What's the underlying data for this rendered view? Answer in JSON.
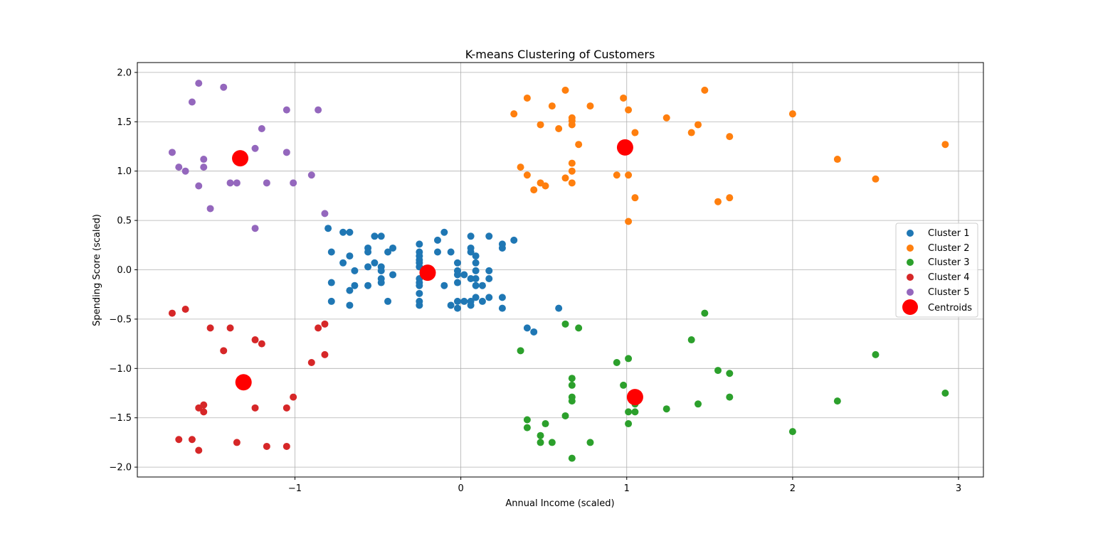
{
  "chart_data": {
    "type": "scatter",
    "title": "K-means Clustering of Customers",
    "xlabel": "Annual Income (scaled)",
    "ylabel": "Spending Score (scaled)",
    "xlim": [
      -1.95,
      3.15
    ],
    "ylim": [
      -2.1,
      2.1
    ],
    "x_ticks": [
      -1,
      0,
      1,
      2,
      3
    ],
    "x_tick_labels": [
      "−1",
      "0",
      "1",
      "2",
      "3"
    ],
    "y_ticks": [
      -2.0,
      -1.5,
      -1.0,
      -0.5,
      0.0,
      0.5,
      1.0,
      1.5,
      2.0
    ],
    "y_tick_labels": [
      "−2.0",
      "−1.5",
      "−1.0",
      "−0.5",
      "0.0",
      "0.5",
      "1.0",
      "1.5",
      "2.0"
    ],
    "grid": true,
    "legend_position": "center-right",
    "series": [
      {
        "name": "Cluster 1",
        "color": "#1f77b4",
        "points": [
          [
            -0.8,
            0.42
          ],
          [
            -0.78,
            0.18
          ],
          [
            -0.78,
            -0.13
          ],
          [
            -0.78,
            -0.32
          ],
          [
            -0.71,
            0.38
          ],
          [
            -0.71,
            0.07
          ],
          [
            -0.67,
            0.38
          ],
          [
            -0.67,
            0.14
          ],
          [
            -0.67,
            -0.21
          ],
          [
            -0.67,
            -0.36
          ],
          [
            -0.64,
            -0.01
          ],
          [
            -0.64,
            -0.16
          ],
          [
            -0.56,
            0.22
          ],
          [
            -0.56,
            0.18
          ],
          [
            -0.56,
            0.03
          ],
          [
            -0.56,
            -0.16
          ],
          [
            -0.52,
            0.34
          ],
          [
            -0.52,
            0.07
          ],
          [
            -0.48,
            0.34
          ],
          [
            -0.48,
            0.03
          ],
          [
            -0.48,
            -0.01
          ],
          [
            -0.48,
            -0.09
          ],
          [
            -0.48,
            -0.13
          ],
          [
            -0.44,
            0.18
          ],
          [
            -0.44,
            -0.32
          ],
          [
            -0.41,
            0.22
          ],
          [
            -0.41,
            -0.05
          ],
          [
            -0.25,
            0.26
          ],
          [
            -0.25,
            0.18
          ],
          [
            -0.25,
            0.14
          ],
          [
            -0.25,
            0.1
          ],
          [
            -0.25,
            0.07
          ],
          [
            -0.25,
            0.03
          ],
          [
            -0.25,
            -0.09
          ],
          [
            -0.25,
            -0.13
          ],
          [
            -0.25,
            -0.16
          ],
          [
            -0.25,
            -0.24
          ],
          [
            -0.25,
            -0.32
          ],
          [
            -0.25,
            -0.36
          ],
          [
            -0.14,
            0.3
          ],
          [
            -0.14,
            0.18
          ],
          [
            -0.1,
            0.38
          ],
          [
            -0.1,
            -0.16
          ],
          [
            -0.06,
            0.18
          ],
          [
            -0.06,
            -0.36
          ],
          [
            -0.02,
            0.07
          ],
          [
            -0.02,
            -0.01
          ],
          [
            -0.02,
            -0.05
          ],
          [
            -0.02,
            -0.13
          ],
          [
            -0.02,
            -0.32
          ],
          [
            -0.02,
            -0.39
          ],
          [
            0.02,
            -0.05
          ],
          [
            0.02,
            -0.32
          ],
          [
            0.06,
            0.34
          ],
          [
            0.06,
            0.22
          ],
          [
            0.06,
            0.18
          ],
          [
            0.06,
            -0.09
          ],
          [
            0.06,
            -0.32
          ],
          [
            0.06,
            -0.36
          ],
          [
            0.09,
            0.14
          ],
          [
            0.09,
            0.07
          ],
          [
            0.09,
            -0.01
          ],
          [
            0.09,
            -0.09
          ],
          [
            0.09,
            -0.16
          ],
          [
            0.09,
            -0.28
          ],
          [
            0.13,
            -0.16
          ],
          [
            0.13,
            -0.32
          ],
          [
            0.17,
            0.34
          ],
          [
            0.17,
            -0.01
          ],
          [
            0.17,
            -0.09
          ],
          [
            0.17,
            -0.28
          ],
          [
            0.25,
            0.26
          ],
          [
            0.25,
            0.22
          ],
          [
            0.25,
            -0.28
          ],
          [
            0.25,
            -0.39
          ],
          [
            0.32,
            0.3
          ],
          [
            0.59,
            -0.39
          ],
          [
            0.4,
            -0.59
          ],
          [
            0.44,
            -0.63
          ]
        ]
      },
      {
        "name": "Cluster 2",
        "color": "#ff7f0e",
        "points": [
          [
            0.32,
            1.58
          ],
          [
            0.36,
            1.04
          ],
          [
            0.4,
            1.74
          ],
          [
            0.4,
            0.96
          ],
          [
            0.44,
            0.81
          ],
          [
            0.48,
            1.47
          ],
          [
            0.48,
            0.88
          ],
          [
            0.51,
            0.85
          ],
          [
            0.55,
            1.66
          ],
          [
            0.59,
            1.43
          ],
          [
            0.63,
            1.82
          ],
          [
            0.63,
            0.93
          ],
          [
            0.67,
            1.54
          ],
          [
            0.67,
            1.51
          ],
          [
            0.67,
            1.47
          ],
          [
            0.67,
            1.08
          ],
          [
            0.67,
            1.0
          ],
          [
            0.67,
            0.88
          ],
          [
            0.71,
            1.27
          ],
          [
            0.78,
            1.66
          ],
          [
            0.94,
            0.96
          ],
          [
            0.98,
            1.74
          ],
          [
            1.01,
            1.62
          ],
          [
            1.01,
            0.96
          ],
          [
            1.01,
            0.49
          ],
          [
            1.05,
            1.39
          ],
          [
            1.05,
            0.73
          ],
          [
            1.24,
            1.54
          ],
          [
            1.39,
            1.39
          ],
          [
            1.43,
            1.47
          ],
          [
            1.47,
            1.82
          ],
          [
            1.55,
            0.69
          ],
          [
            1.62,
            1.35
          ],
          [
            1.62,
            0.73
          ],
          [
            2.0,
            1.58
          ],
          [
            2.27,
            1.12
          ],
          [
            2.5,
            0.92
          ],
          [
            2.92,
            1.27
          ]
        ]
      },
      {
        "name": "Cluster 3",
        "color": "#2ca02c",
        "points": [
          [
            0.36,
            -0.82
          ],
          [
            0.4,
            -1.52
          ],
          [
            0.4,
            -1.6
          ],
          [
            0.48,
            -1.68
          ],
          [
            0.48,
            -1.75
          ],
          [
            0.51,
            -1.56
          ],
          [
            0.55,
            -1.75
          ],
          [
            0.63,
            -0.55
          ],
          [
            0.63,
            -1.48
          ],
          [
            0.67,
            -1.1
          ],
          [
            0.67,
            -1.17
          ],
          [
            0.67,
            -1.29
          ],
          [
            0.67,
            -1.33
          ],
          [
            0.67,
            -1.91
          ],
          [
            0.71,
            -0.59
          ],
          [
            0.78,
            -1.75
          ],
          [
            0.94,
            -0.94
          ],
          [
            0.98,
            -1.17
          ],
          [
            1.01,
            -0.9
          ],
          [
            1.01,
            -1.44
          ],
          [
            1.01,
            -1.56
          ],
          [
            1.05,
            -1.36
          ],
          [
            1.05,
            -1.44
          ],
          [
            1.24,
            -1.41
          ],
          [
            1.39,
            -0.71
          ],
          [
            1.43,
            -1.36
          ],
          [
            1.47,
            -0.44
          ],
          [
            1.55,
            -1.02
          ],
          [
            1.62,
            -1.05
          ],
          [
            1.62,
            -1.29
          ],
          [
            2.0,
            -1.64
          ],
          [
            2.27,
            -1.33
          ],
          [
            2.5,
            -0.86
          ],
          [
            2.92,
            -1.25
          ]
        ]
      },
      {
        "name": "Cluster 4",
        "color": "#d62728",
        "points": [
          [
            -1.74,
            -0.44
          ],
          [
            -1.7,
            -1.72
          ],
          [
            -1.66,
            -0.4
          ],
          [
            -1.62,
            -1.72
          ],
          [
            -1.58,
            -1.4
          ],
          [
            -1.58,
            -1.83
          ],
          [
            -1.55,
            -1.37
          ],
          [
            -1.55,
            -1.44
          ],
          [
            -1.51,
            -0.59
          ],
          [
            -1.43,
            -0.82
          ],
          [
            -1.39,
            -0.59
          ],
          [
            -1.35,
            -1.75
          ],
          [
            -1.24,
            -0.71
          ],
          [
            -1.24,
            -1.4
          ],
          [
            -1.2,
            -0.75
          ],
          [
            -1.17,
            -1.79
          ],
          [
            -1.05,
            -1.4
          ],
          [
            -1.05,
            -1.79
          ],
          [
            -1.01,
            -1.29
          ],
          [
            -0.9,
            -0.94
          ],
          [
            -0.86,
            -0.59
          ],
          [
            -0.82,
            -0.55
          ],
          [
            -0.82,
            -0.86
          ]
        ]
      },
      {
        "name": "Cluster 5",
        "color": "#9467bd",
        "points": [
          [
            -1.74,
            1.19
          ],
          [
            -1.7,
            1.04
          ],
          [
            -1.66,
            1.0
          ],
          [
            -1.62,
            1.7
          ],
          [
            -1.58,
            1.89
          ],
          [
            -1.58,
            0.85
          ],
          [
            -1.55,
            1.12
          ],
          [
            -1.55,
            1.04
          ],
          [
            -1.51,
            0.62
          ],
          [
            -1.43,
            1.85
          ],
          [
            -1.39,
            0.88
          ],
          [
            -1.35,
            0.88
          ],
          [
            -1.24,
            1.23
          ],
          [
            -1.24,
            0.42
          ],
          [
            -1.2,
            1.43
          ],
          [
            -1.17,
            0.88
          ],
          [
            -1.05,
            1.62
          ],
          [
            -1.05,
            1.19
          ],
          [
            -1.01,
            0.88
          ],
          [
            -0.9,
            0.96
          ],
          [
            -0.86,
            1.62
          ],
          [
            -0.82,
            0.57
          ]
        ]
      }
    ],
    "centroids": {
      "name": "Centroids",
      "color": "#ff0000",
      "points": [
        [
          -0.2,
          -0.03
        ],
        [
          0.99,
          1.24
        ],
        [
          1.05,
          -1.29
        ],
        [
          -1.31,
          -1.14
        ],
        [
          -1.33,
          1.13
        ]
      ]
    }
  }
}
